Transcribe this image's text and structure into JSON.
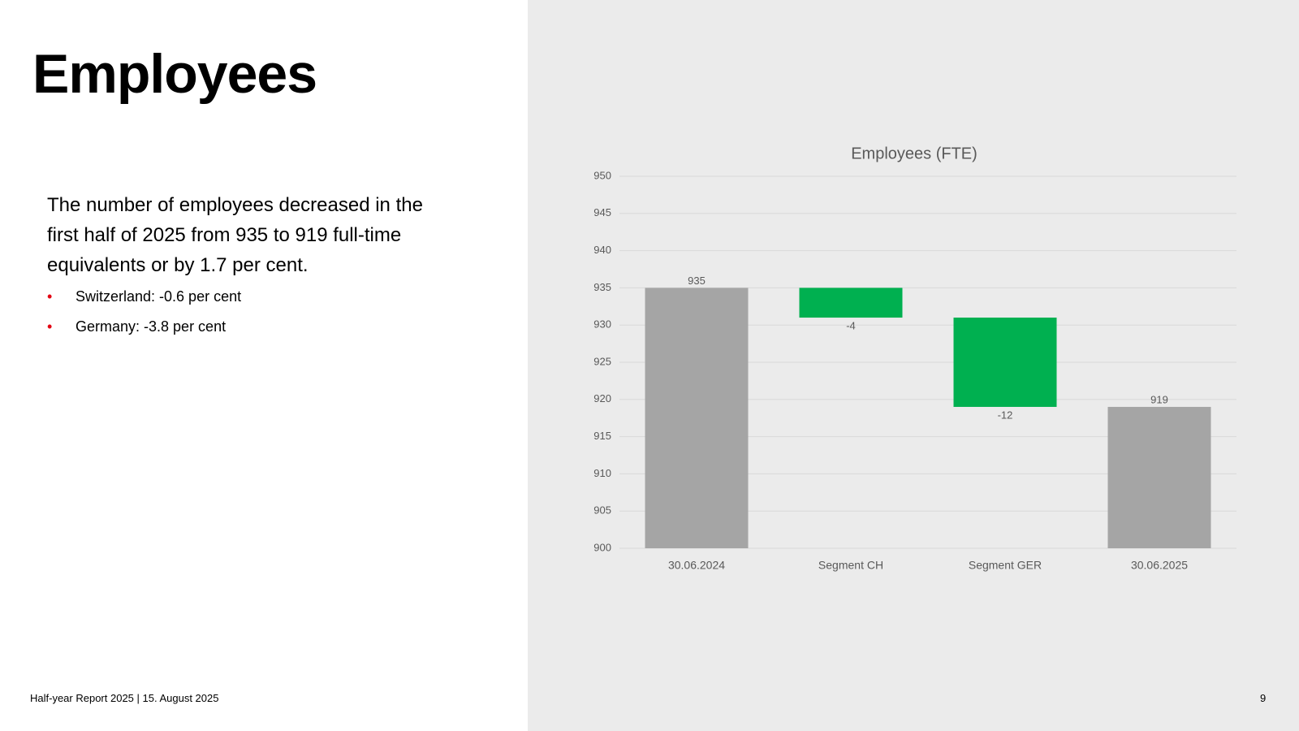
{
  "slide": {
    "title": "Employees",
    "paragraph": "The number of employees decreased in the first half of 2025 from 935 to 919 full-time equivalents or by 1.7 per cent.",
    "bullets": [
      "Switzerland: -0.6 per cent",
      "Germany: -3.8 per cent"
    ],
    "footer": "Half-year Report 2025 | 15. August 2025",
    "page_number": "9"
  },
  "chart_data": {
    "type": "waterfall",
    "title": "Employees (FTE)",
    "categories": [
      "30.06.2024",
      "Segment CH",
      "Segment GER",
      "30.06.2025"
    ],
    "values": [
      935,
      -4,
      -12,
      919
    ],
    "measure": [
      "total",
      "relative",
      "relative",
      "total"
    ],
    "total_color": "#a5a5a5",
    "decrease_color": "#00b050",
    "ylim": [
      900,
      950
    ],
    "yticks": [
      900,
      905,
      910,
      915,
      920,
      925,
      930,
      935,
      940,
      945,
      950
    ],
    "grid": true
  }
}
